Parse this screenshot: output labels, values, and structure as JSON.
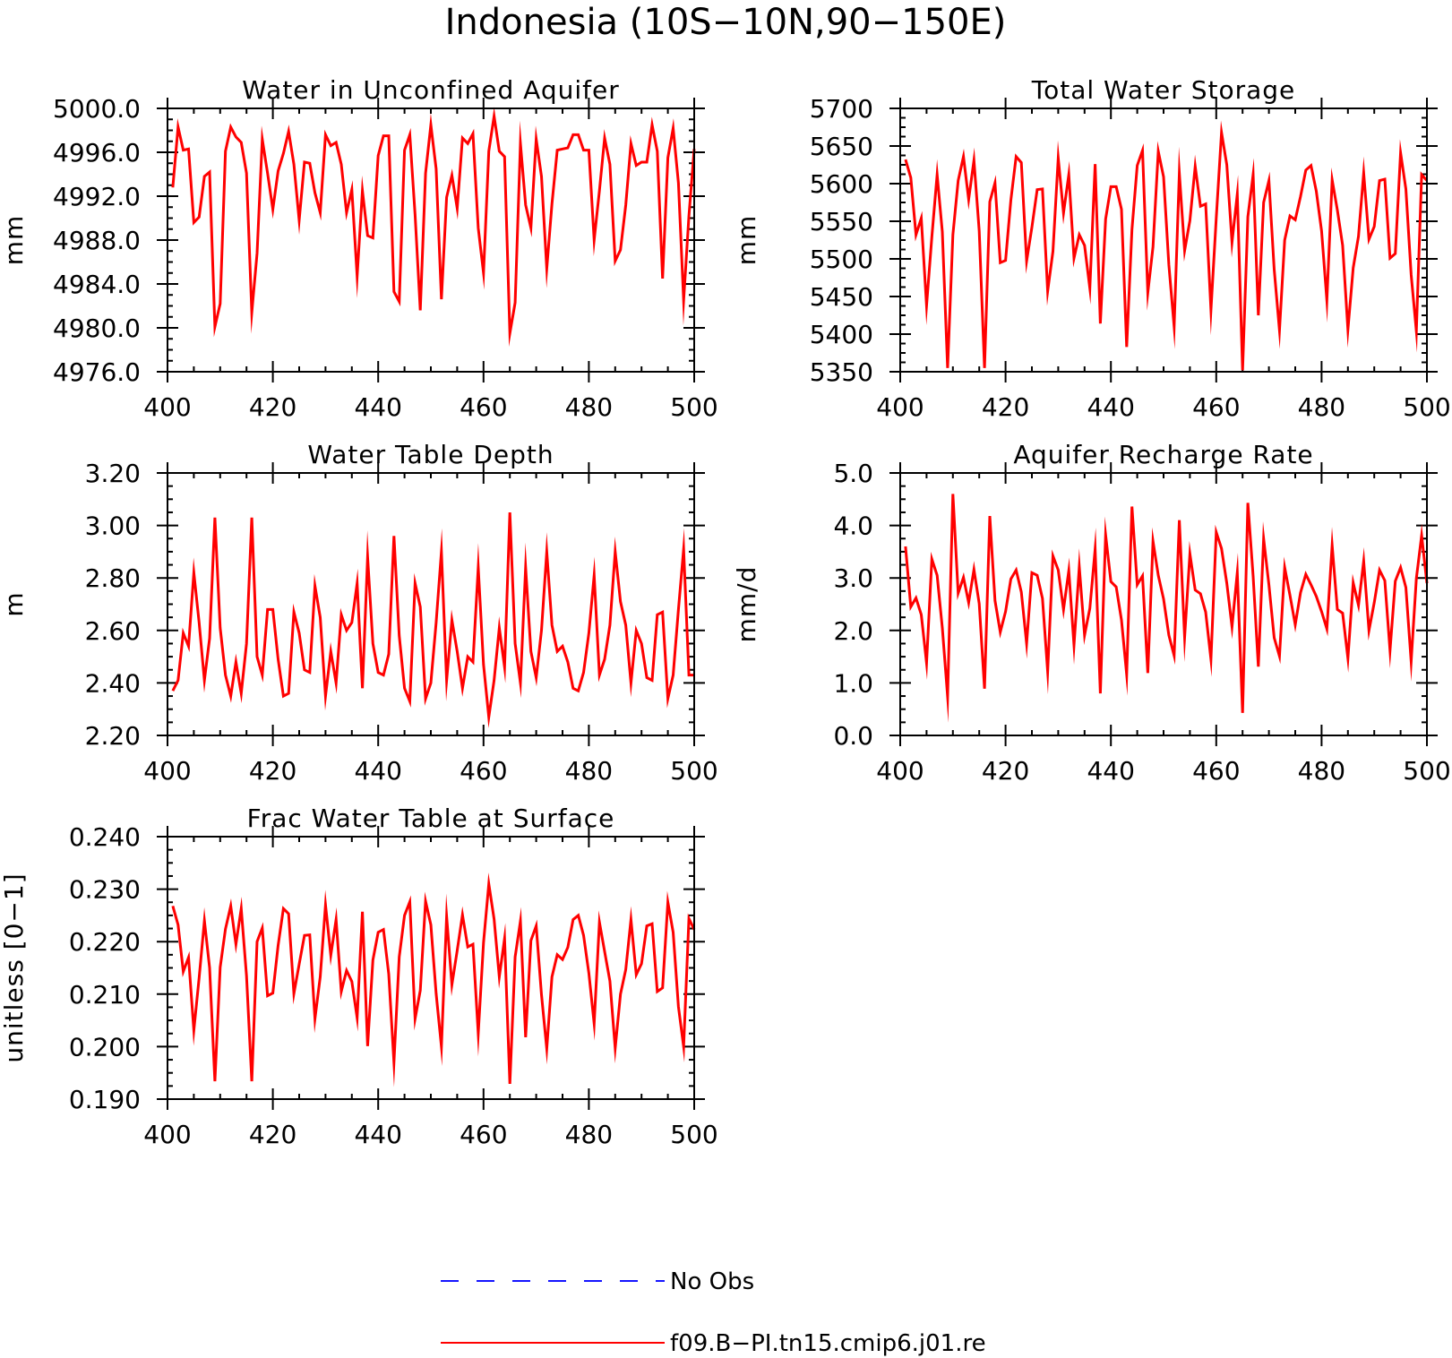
{
  "figure": {
    "title": "Indonesia (10S−10N,90−150E)"
  },
  "legend": [
    {
      "label": "No Obs",
      "color": "#1414ff",
      "style": "dashed"
    },
    {
      "label": "f09.B−PI.tn15.cmip6.j01.re",
      "color": "#ff0000",
      "style": "solid"
    }
  ],
  "chart_data": [
    {
      "type": "line",
      "title": "Water in Unconfined Aquifer",
      "xlabel": "",
      "ylabel": "mm",
      "xlim": [
        400,
        500
      ],
      "ylim": [
        4976,
        5000
      ],
      "xticks": [
        "400",
        "420",
        "440",
        "460",
        "480",
        "500"
      ],
      "yticks": [
        "4976.0",
        "4980.0",
        "4984.0",
        "4988.0",
        "4992.0",
        "4996.0",
        "5000.0"
      ],
      "grid": false,
      "series": [
        {
          "name": "f09.B−PI.tn15.cmip6.j01.re",
          "color": "#ff0000",
          "x_start": 401,
          "x_step": 1,
          "values": [
            4992.8,
            4998.3,
            4996.2,
            4996.3,
            4989.6,
            4990.1,
            4993.8,
            4994.2,
            4980.1,
            4982.2,
            4996.1,
            4998.3,
            4997.4,
            4996.9,
            4994.1,
            4981.4,
            4986.8,
            4997.2,
            4994.1,
            4990.8,
            4994.3,
            4995.9,
            4997.9,
            4994.9,
            4989.8,
            4995.1,
            4995.0,
            4992.3,
            4990.5,
            4997.6,
            4996.6,
            4996.9,
            4994.9,
            4990.5,
            4992.6,
            4984.7,
            4992.5,
            4988.4,
            4988.2,
            4995.7,
            4997.5,
            4997.5,
            4983.3,
            4982.4,
            4996.2,
            4997.6,
            4990.3,
            4981.6,
            4994.1,
            4998.5,
            4994.5,
            4982.6,
            4991.9,
            4993.9,
            4990.9,
            4997.3,
            4996.8,
            4997.7,
            4989.1,
            4985.0,
            4996.1,
            4999.3,
            4996.1,
            4995.6,
            4979.5,
            4982.3,
            4996.8,
            4991.2,
            4989.1,
            4997.2,
            4993.8,
            4985.4,
            4991.3,
            4996.2,
            4996.3,
            4996.4,
            4997.6,
            4997.6,
            4996.2,
            4996.2,
            4988.0,
            4992.5,
            4997.3,
            4994.9,
            4986.1,
            4987.1,
            4991.2,
            4996.8,
            4994.8,
            4995.1,
            4995.1,
            4998.5,
            4996.1,
            4984.5,
            4995.5,
            4998.2,
            4993.2,
            4982.5,
            4990.2,
            4996.3
          ]
        }
      ]
    },
    {
      "type": "line",
      "title": "Total Water Storage",
      "xlabel": "",
      "ylabel": "mm",
      "xlim": [
        400,
        500
      ],
      "ylim": [
        5350,
        5700
      ],
      "xticks": [
        "400",
        "420",
        "440",
        "460",
        "480",
        "500"
      ],
      "yticks": [
        "5350",
        "5400",
        "5450",
        "5500",
        "5550",
        "5600",
        "5650",
        "5700"
      ],
      "grid": false,
      "series": [
        {
          "name": "f09.B−PI.tn15.cmip6.j01.re",
          "color": "#ff0000",
          "x_start": 401,
          "x_step": 1,
          "values": [
            5632,
            5608,
            5532,
            5554,
            5438,
            5529,
            5612,
            5536,
            5355,
            5532,
            5604,
            5636,
            5579,
            5631,
            5537,
            5355,
            5576,
            5601,
            5495,
            5498,
            5578,
            5636,
            5628,
            5497,
            5542,
            5592,
            5593,
            5457,
            5510,
            5634,
            5561,
            5612,
            5501,
            5532,
            5518,
            5461,
            5626,
            5414,
            5553,
            5596,
            5596,
            5566,
            5383,
            5539,
            5624,
            5644,
            5455,
            5516,
            5643,
            5609,
            5492,
            5410,
            5614,
            5511,
            5551,
            5623,
            5570,
            5573,
            5432,
            5554,
            5668,
            5625,
            5522,
            5586,
            5352,
            5556,
            5612,
            5425,
            5575,
            5604,
            5486,
            5405,
            5525,
            5557,
            5552,
            5583,
            5618,
            5624,
            5590,
            5537,
            5445,
            5605,
            5565,
            5518,
            5406,
            5488,
            5530,
            5614,
            5526,
            5543,
            5604,
            5606,
            5501,
            5507,
            5641,
            5593,
            5479,
            5404,
            5612,
            5604
          ]
        }
      ]
    },
    {
      "type": "line",
      "title": "Water Table Depth",
      "xlabel": "",
      "ylabel": "m",
      "xlim": [
        400,
        500
      ],
      "ylim": [
        2.2,
        3.2
      ],
      "xticks": [
        "400",
        "420",
        "440",
        "460",
        "480",
        "500"
      ],
      "yticks": [
        "2.20",
        "2.40",
        "2.60",
        "2.80",
        "3.00",
        "3.20"
      ],
      "grid": false,
      "series": [
        {
          "name": "f09.B−PI.tn15.cmip6.j01.re",
          "color": "#ff0000",
          "x_start": 401,
          "x_step": 1,
          "values": [
            2.37,
            2.41,
            2.59,
            2.54,
            2.82,
            2.63,
            2.41,
            2.57,
            3.03,
            2.61,
            2.43,
            2.35,
            2.48,
            2.36,
            2.55,
            3.03,
            2.5,
            2.43,
            2.68,
            2.68,
            2.49,
            2.35,
            2.36,
            2.67,
            2.59,
            2.45,
            2.44,
            2.77,
            2.65,
            2.35,
            2.52,
            2.4,
            2.66,
            2.6,
            2.63,
            2.78,
            2.38,
            2.88,
            2.55,
            2.44,
            2.43,
            2.51,
            2.96,
            2.58,
            2.38,
            2.33,
            2.78,
            2.69,
            2.34,
            2.4,
            2.63,
            2.9,
            2.41,
            2.64,
            2.52,
            2.38,
            2.5,
            2.48,
            2.84,
            2.47,
            2.27,
            2.41,
            2.61,
            2.46,
            3.05,
            2.55,
            2.4,
            2.84,
            2.52,
            2.42,
            2.6,
            2.9,
            2.62,
            2.52,
            2.54,
            2.48,
            2.38,
            2.37,
            2.44,
            2.59,
            2.81,
            2.43,
            2.49,
            2.62,
            2.9,
            2.71,
            2.62,
            2.4,
            2.6,
            2.55,
            2.42,
            2.41,
            2.66,
            2.67,
            2.34,
            2.43,
            2.68,
            2.91,
            2.43,
            2.43
          ]
        }
      ]
    },
    {
      "type": "line",
      "title": "Aquifer Recharge Rate",
      "xlabel": "",
      "ylabel": "mm/d",
      "xlim": [
        400,
        500
      ],
      "ylim": [
        0,
        5
      ],
      "xticks": [
        "400",
        "420",
        "440",
        "460",
        "480",
        "500"
      ],
      "yticks": [
        "0.0",
        "1.0",
        "2.0",
        "3.0",
        "4.0",
        "5.0"
      ],
      "grid": false,
      "series": [
        {
          "name": "f09.B−PI.tn15.cmip6.j01.re",
          "color": "#ff0000",
          "x_start": 401,
          "x_step": 1,
          "values": [
            3.6,
            2.45,
            2.62,
            2.3,
            1.38,
            3.36,
            3.05,
            2.05,
            0.74,
            4.6,
            2.71,
            3.01,
            2.53,
            3.16,
            2.51,
            0.89,
            4.18,
            2.57,
            1.97,
            2.36,
            2.98,
            3.15,
            2.73,
            1.75,
            3.1,
            3.05,
            2.61,
            1.22,
            3.42,
            3.15,
            2.4,
            3.14,
            1.72,
            3.21,
            1.91,
            2.42,
            3.55,
            0.8,
            3.82,
            2.93,
            2.83,
            2.2,
            1.16,
            4.36,
            2.87,
            3.04,
            1.19,
            3.7,
            3.05,
            2.6,
            1.91,
            1.52,
            4.1,
            1.87,
            3.46,
            2.77,
            2.7,
            2.35,
            1.45,
            3.87,
            3.56,
            2.9,
            2.07,
            3.1,
            0.43,
            4.43,
            3.03,
            1.31,
            3.75,
            2.87,
            1.86,
            1.51,
            3.2,
            2.67,
            2.11,
            2.72,
            3.07,
            2.87,
            2.65,
            2.36,
            2.03,
            3.62,
            2.4,
            2.33,
            1.47,
            2.91,
            2.48,
            3.32,
            2.0,
            2.53,
            3.15,
            2.95,
            1.62,
            2.94,
            3.2,
            2.82,
            1.41,
            2.99,
            3.81,
            2.9
          ]
        }
      ]
    },
    {
      "type": "line",
      "title": "Frac Water Table at Surface",
      "xlabel": "",
      "ylabel": "unitless [0−1]",
      "xlim": [
        400,
        500
      ],
      "ylim": [
        0.19,
        0.24
      ],
      "xticks": [
        "400",
        "420",
        "440",
        "460",
        "480",
        "500"
      ],
      "yticks": [
        "0.190",
        "0.200",
        "0.210",
        "0.220",
        "0.230",
        "0.240"
      ],
      "grid": false,
      "series": [
        {
          "name": "f09.B−PI.tn15.cmip6.j01.re",
          "color": "#ff0000",
          "x_start": 401,
          "x_step": 1,
          "values": [
            0.2268,
            0.2232,
            0.2143,
            0.217,
            0.2031,
            0.2131,
            0.224,
            0.215,
            0.1934,
            0.2151,
            0.2224,
            0.2268,
            0.2195,
            0.2263,
            0.2135,
            0.1934,
            0.22,
            0.2226,
            0.2097,
            0.2102,
            0.2193,
            0.2263,
            0.2253,
            0.2101,
            0.2157,
            0.2212,
            0.2213,
            0.2053,
            0.2133,
            0.227,
            0.2174,
            0.2242,
            0.2105,
            0.2145,
            0.2124,
            0.2055,
            0.2257,
            0.2001,
            0.2165,
            0.2218,
            0.2223,
            0.2138,
            0.197,
            0.2171,
            0.225,
            0.2276,
            0.2053,
            0.2107,
            0.2277,
            0.2232,
            0.2101,
            0.2,
            0.2248,
            0.2118,
            0.2183,
            0.2251,
            0.219,
            0.2195,
            0.2025,
            0.2198,
            0.231,
            0.2243,
            0.2133,
            0.2206,
            0.1929,
            0.2171,
            0.2239,
            0.2018,
            0.2202,
            0.223,
            0.2099,
            0.1996,
            0.2133,
            0.2175,
            0.2166,
            0.2189,
            0.2242,
            0.225,
            0.2212,
            0.214,
            0.2044,
            0.2237,
            0.2181,
            0.2125,
            0.1997,
            0.21,
            0.2147,
            0.2242,
            0.2137,
            0.2158,
            0.223,
            0.2234,
            0.2105,
            0.2112,
            0.2275,
            0.2218,
            0.2076,
            0.2,
            0.2244,
            0.2223
          ]
        }
      ]
    }
  ]
}
